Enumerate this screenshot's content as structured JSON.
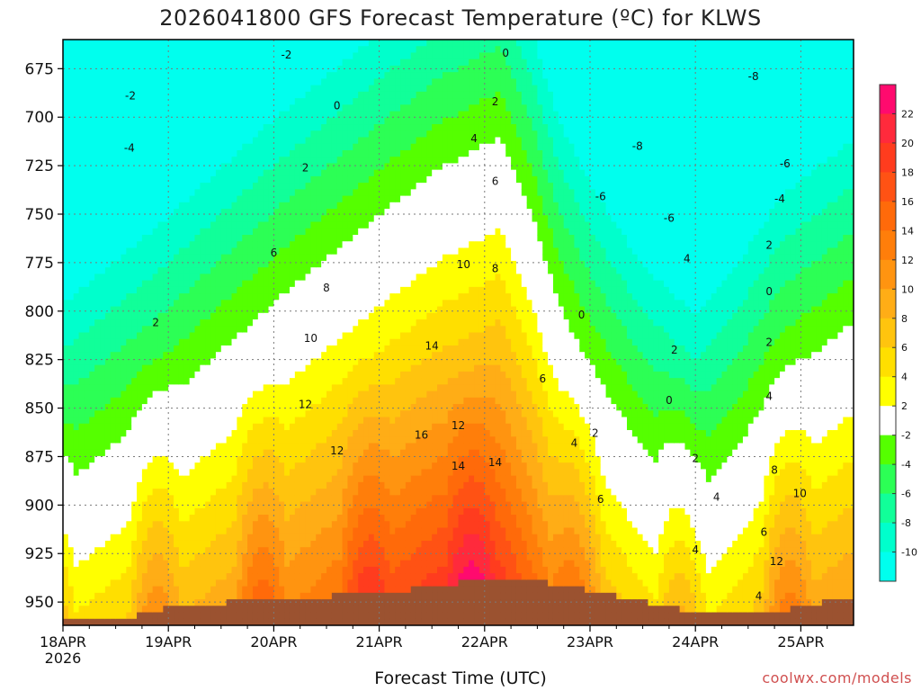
{
  "chart_data": {
    "type": "heatmap",
    "title": "2026041800 GFS Forecast Temperature (ºC) for KLWS",
    "xlabel": "Forecast Time (UTC)",
    "ylabel": "",
    "credit": "coolwx.com/models",
    "x_ticks": [
      "18APR",
      "19APR",
      "20APR",
      "21APR",
      "22APR",
      "23APR",
      "24APR",
      "25APR"
    ],
    "x_sub_label": "2026",
    "y_ticks": [
      675,
      700,
      725,
      750,
      775,
      800,
      825,
      850,
      875,
      900,
      925,
      950
    ],
    "ylim": [
      962,
      660
    ],
    "xlim": [
      0,
      7.5
    ],
    "grid": true,
    "colorbar": {
      "levels": [
        22,
        20,
        18,
        16,
        14,
        12,
        10,
        8,
        6,
        4,
        2,
        -2,
        -4,
        -6,
        -8,
        -10
      ],
      "colors": [
        "#ff0a6e",
        "#ff2a3c",
        "#ff3c1e",
        "#ff5214",
        "#ff6a0a",
        "#ff7e0a",
        "#ff9410",
        "#ffad16",
        "#ffc40e",
        "#ffdf00",
        "#ffff00",
        "#ffffff",
        "#55ff00",
        "#2cff55",
        "#11ff99",
        "#00ffcc",
        "#00ffee"
      ]
    },
    "contour_labels": [
      {
        "x": 0.64,
        "y": 689,
        "v": "-2"
      },
      {
        "x": 2.12,
        "y": 668,
        "v": "-2"
      },
      {
        "x": 0.63,
        "y": 716,
        "v": "-4"
      },
      {
        "x": 4.2,
        "y": 667,
        "v": "0"
      },
      {
        "x": 2.6,
        "y": 694,
        "v": "0"
      },
      {
        "x": 4.1,
        "y": 692,
        "v": "2"
      },
      {
        "x": 2.3,
        "y": 726,
        "v": "2"
      },
      {
        "x": 0.88,
        "y": 806,
        "v": "2"
      },
      {
        "x": 3.9,
        "y": 711,
        "v": "4"
      },
      {
        "x": 4.1,
        "y": 733,
        "v": "6"
      },
      {
        "x": 2.0,
        "y": 770,
        "v": "6"
      },
      {
        "x": 3.8,
        "y": 776,
        "v": "10"
      },
      {
        "x": 4.1,
        "y": 778,
        "v": "8"
      },
      {
        "x": 2.5,
        "y": 788,
        "v": "8"
      },
      {
        "x": 2.35,
        "y": 814,
        "v": "10"
      },
      {
        "x": 3.5,
        "y": 818,
        "v": "14"
      },
      {
        "x": 2.3,
        "y": 848,
        "v": "12"
      },
      {
        "x": 3.75,
        "y": 859,
        "v": "12"
      },
      {
        "x": 3.4,
        "y": 864,
        "v": "16"
      },
      {
        "x": 2.6,
        "y": 872,
        "v": "12"
      },
      {
        "x": 3.75,
        "y": 880,
        "v": "14"
      },
      {
        "x": 4.1,
        "y": 878,
        "v": "14"
      },
      {
        "x": 4.55,
        "y": 835,
        "v": "6"
      },
      {
        "x": 4.85,
        "y": 868,
        "v": "4"
      },
      {
        "x": 5.05,
        "y": 863,
        "v": "2"
      },
      {
        "x": 5.1,
        "y": 897,
        "v": "6"
      },
      {
        "x": 4.92,
        "y": 802,
        "v": "0"
      },
      {
        "x": 5.45,
        "y": 715,
        "v": "-8"
      },
      {
        "x": 5.1,
        "y": 741,
        "v": "-6"
      },
      {
        "x": 5.75,
        "y": 752,
        "v": "-6"
      },
      {
        "x": 6.55,
        "y": 679,
        "v": "-8"
      },
      {
        "x": 6.85,
        "y": 724,
        "v": "-6"
      },
      {
        "x": 6.8,
        "y": 742,
        "v": "-4"
      },
      {
        "x": 5.92,
        "y": 773,
        "v": "4"
      },
      {
        "x": 5.8,
        "y": 820,
        "v": "2"
      },
      {
        "x": 5.75,
        "y": 846,
        "v": "0"
      },
      {
        "x": 6.7,
        "y": 766,
        "v": "2"
      },
      {
        "x": 6.7,
        "y": 790,
        "v": "0"
      },
      {
        "x": 6.7,
        "y": 816,
        "v": "2"
      },
      {
        "x": 6.7,
        "y": 844,
        "v": "4"
      },
      {
        "x": 6.0,
        "y": 876,
        "v": "2"
      },
      {
        "x": 6.2,
        "y": 896,
        "v": "4"
      },
      {
        "x": 6.0,
        "y": 923,
        "v": "4"
      },
      {
        "x": 6.75,
        "y": 882,
        "v": "8"
      },
      {
        "x": 6.99,
        "y": 894,
        "v": "10"
      },
      {
        "x": 6.65,
        "y": 914,
        "v": "6"
      },
      {
        "x": 6.77,
        "y": 929,
        "v": "12"
      },
      {
        "x": 6.6,
        "y": 947,
        "v": "4"
      }
    ]
  }
}
